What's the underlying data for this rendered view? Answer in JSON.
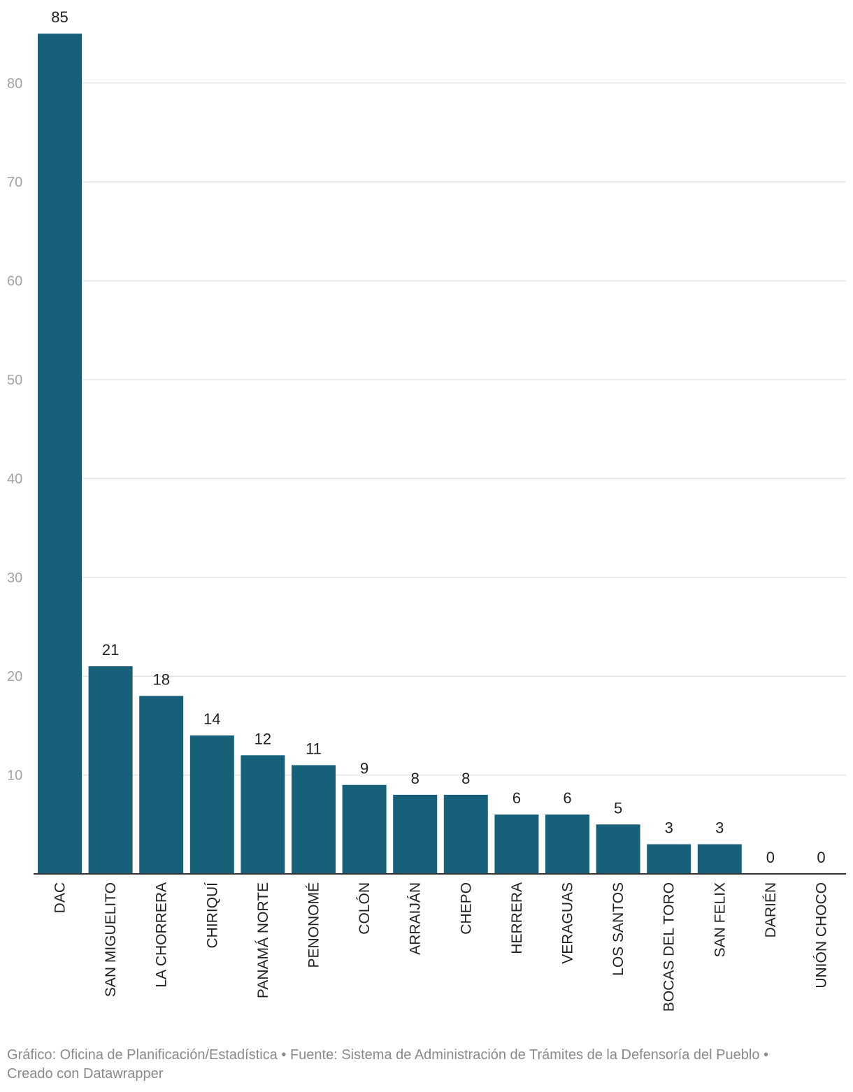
{
  "chart_data": {
    "type": "bar",
    "categories": [
      "DAC",
      "SAN MIGUELITO",
      "LA CHORRERA",
      "CHIRIQUÍ",
      "PANAMÁ NORTE",
      "PENONOMÉ",
      "COLÓN",
      "ARRAIJÁN",
      "CHEPO",
      "HERRERA",
      "VERAGUAS",
      "LOS SANTOS",
      "BOCAS DEL TORO",
      "SAN FELIX",
      "DARIÉN",
      "UNIÓN CHOCO"
    ],
    "values": [
      85,
      21,
      18,
      14,
      12,
      11,
      9,
      8,
      8,
      6,
      6,
      5,
      3,
      3,
      0,
      0
    ],
    "ylim": [
      0,
      85
    ],
    "yticks": [
      10,
      20,
      30,
      40,
      50,
      60,
      70,
      80
    ],
    "grid": true,
    "bar_color": "#17607a",
    "title": "",
    "xlabel": "",
    "ylabel": ""
  },
  "footer": {
    "line1": "Gráfico: Oficina de Planificación/Estadística • Fuente: Sistema de Administración de Trámites de la Defensoría del Pueblo •",
    "line2": "Creado con Datawrapper"
  }
}
